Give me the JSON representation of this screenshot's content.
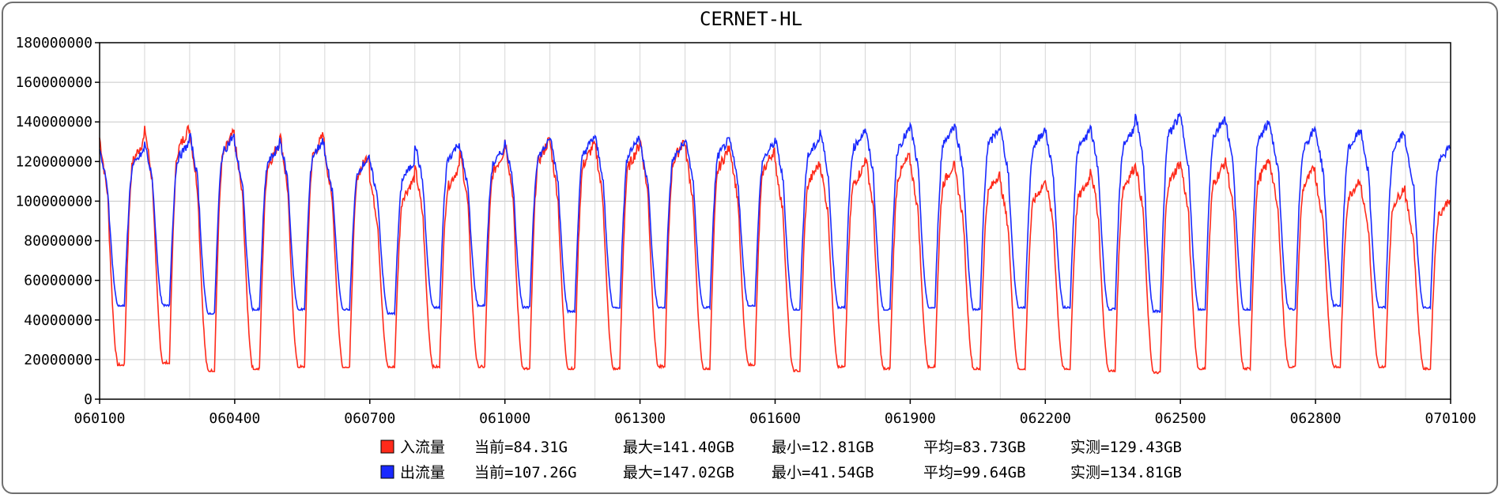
{
  "chart_data": {
    "type": "line",
    "title": "CERNET-HL",
    "xlabel": "",
    "ylabel": "",
    "ylim": [
      0,
      180000000
    ],
    "y_ticks": [
      0,
      20000000,
      40000000,
      60000000,
      80000000,
      100000000,
      120000000,
      140000000,
      160000000,
      180000000
    ],
    "y_tick_labels": [
      "0",
      "20000000",
      "40000000",
      "60000000",
      "80000000",
      "100000000",
      "120000000",
      "140000000",
      "160000000",
      "180000000"
    ],
    "x_tick_labels": [
      "060100",
      "060400",
      "060700",
      "061000",
      "061300",
      "061600",
      "061900",
      "062200",
      "062500",
      "062800",
      "070100"
    ],
    "grid": true,
    "legend_position": "bottom",
    "series": [
      {
        "name": "入流量",
        "color": "#ff2a1a",
        "day_peaks": [
          132000000,
          138000000,
          136000000,
          130000000,
          135000000,
          125000000,
          112000000,
          118000000,
          126000000,
          132000000,
          130000000,
          129000000,
          132000000,
          128000000,
          127000000,
          120000000,
          119000000,
          124000000,
          120000000,
          115000000,
          110000000,
          112000000,
          118000000,
          120000000,
          120000000,
          122000000,
          118000000,
          112000000,
          108000000,
          102000000
        ],
        "day_troughs": [
          17000000,
          18000000,
          14000000,
          15000000,
          16000000,
          16000000,
          16000000,
          16000000,
          16000000,
          15000000,
          15000000,
          15000000,
          16000000,
          15000000,
          17000000,
          14000000,
          16000000,
          15000000,
          16000000,
          15000000,
          15000000,
          15000000,
          14000000,
          13000000,
          15000000,
          15000000,
          16000000,
          16000000,
          16000000,
          15000000
        ],
        "legend_stats": {
          "current": "当前=84.31G",
          "max": "最大=141.40GB",
          "min": "最小=12.81GB",
          "avg": "平均=83.73GB",
          "measured": "实测=129.43GB"
        }
      },
      {
        "name": "出流量",
        "color": "#1a2aff",
        "day_peaks": [
          126000000,
          130000000,
          134000000,
          128000000,
          132000000,
          123000000,
          120000000,
          130000000,
          127000000,
          131000000,
          133000000,
          133000000,
          130000000,
          132000000,
          130000000,
          132000000,
          136000000,
          137000000,
          139000000,
          138000000,
          137000000,
          136000000,
          138000000,
          144000000,
          143000000,
          141000000,
          137000000,
          136000000,
          136000000,
          128000000
        ],
        "day_troughs": [
          47000000,
          47000000,
          43000000,
          45000000,
          45000000,
          45000000,
          43000000,
          46000000,
          47000000,
          46000000,
          44000000,
          46000000,
          46000000,
          46000000,
          47000000,
          45000000,
          46000000,
          45000000,
          46000000,
          45000000,
          46000000,
          46000000,
          45000000,
          44000000,
          45000000,
          45000000,
          45000000,
          47000000,
          46000000,
          46000000
        ],
        "legend_stats": {
          "current": "当前=107.26G",
          "max": "最大=147.02GB",
          "min": "最小=41.54GB",
          "avg": "平均=99.64GB",
          "measured": "实测=134.81GB"
        }
      }
    ]
  }
}
